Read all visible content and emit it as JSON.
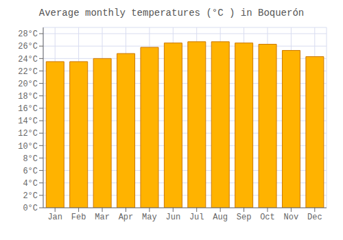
{
  "chart_data": {
    "type": "bar",
    "title": "Average monthly temperatures (°C ) in Boquerón",
    "categories": [
      "Jan",
      "Feb",
      "Mar",
      "Apr",
      "May",
      "Jun",
      "Jul",
      "Aug",
      "Sep",
      "Oct",
      "Nov",
      "Dec"
    ],
    "values": [
      23.5,
      23.5,
      24.0,
      24.8,
      25.8,
      26.5,
      26.7,
      26.7,
      26.5,
      26.3,
      25.3,
      24.3
    ],
    "color": "#FFB300",
    "ylim": [
      0,
      29
    ],
    "yticks": [
      {
        "value": 0,
        "label": "0°C"
      },
      {
        "value": 2,
        "label": "2°C"
      },
      {
        "value": 4,
        "label": "4°C"
      },
      {
        "value": 6,
        "label": "6°C"
      },
      {
        "value": 8,
        "label": "8°C"
      },
      {
        "value": 10,
        "label": "10°C"
      },
      {
        "value": 12,
        "label": "12°C"
      },
      {
        "value": 14,
        "label": "14°C"
      },
      {
        "value": 16,
        "label": "16°C"
      },
      {
        "value": 18,
        "label": "18°C"
      },
      {
        "value": 20,
        "label": "20°C"
      },
      {
        "value": 22,
        "label": "22°C"
      },
      {
        "value": 24,
        "label": "24°C"
      },
      {
        "value": 26,
        "label": "26°C"
      },
      {
        "value": 28,
        "label": "28°C"
      }
    ],
    "grid": true
  }
}
